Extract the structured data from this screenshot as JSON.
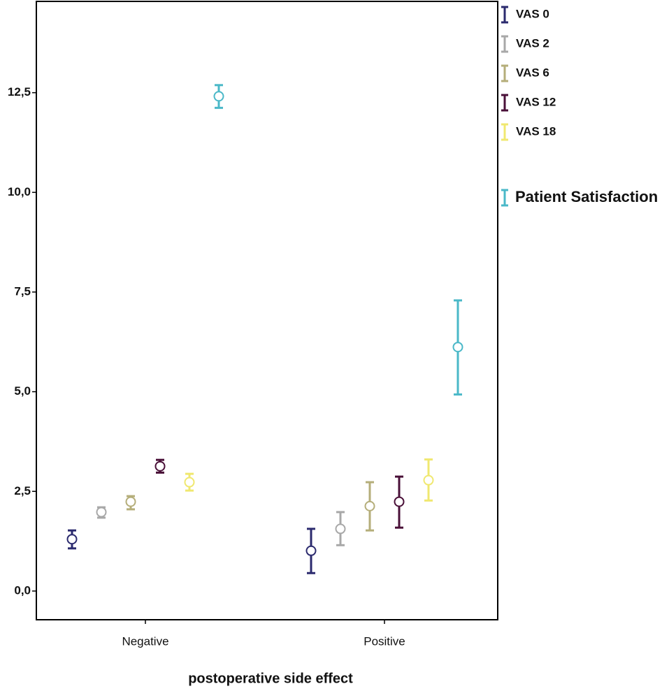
{
  "chart_data": {
    "type": "errorbar",
    "x_label": "postoperative side effect",
    "categories": [
      "Negative",
      "Positive"
    ],
    "ylim": [
      -0.72,
      14.79
    ],
    "yticks": [
      {
        "value": 0,
        "label": "0,0"
      },
      {
        "value": 2.5,
        "label": "2,5"
      },
      {
        "value": 5,
        "label": "5,0"
      },
      {
        "value": 7.5,
        "label": "7,5"
      },
      {
        "value": 10,
        "label": "10,0"
      },
      {
        "value": 12.5,
        "label": "12,5"
      }
    ],
    "series": [
      {
        "name": "VAS 0",
        "color": "#2b2a6e",
        "values": [
          1.3,
          1.01
        ],
        "lower": [
          1.07,
          0.45
        ],
        "upper": [
          1.52,
          1.56
        ]
      },
      {
        "name": "VAS 2",
        "color": "#a8a8a8",
        "values": [
          1.98,
          1.56
        ],
        "lower": [
          1.84,
          1.15
        ],
        "upper": [
          2.1,
          1.98
        ]
      },
      {
        "name": "VAS 6",
        "color": "#b5ae7a",
        "values": [
          2.24,
          2.13
        ],
        "lower": [
          2.05,
          1.52
        ],
        "upper": [
          2.38,
          2.73
        ]
      },
      {
        "name": "VAS 12",
        "color": "#4a1038",
        "values": [
          3.13,
          2.24
        ],
        "lower": [
          2.97,
          1.59
        ],
        "upper": [
          3.29,
          2.87
        ]
      },
      {
        "name": "VAS 18",
        "color": "#f0e870",
        "values": [
          2.73,
          2.78
        ],
        "lower": [
          2.52,
          2.27
        ],
        "upper": [
          2.94,
          3.3
        ]
      },
      {
        "name": "Patient Satisfaction",
        "color": "#4ab8c8",
        "values": [
          12.41,
          6.12
        ],
        "lower": [
          12.12,
          4.93
        ],
        "upper": [
          12.69,
          7.29
        ]
      }
    ]
  }
}
